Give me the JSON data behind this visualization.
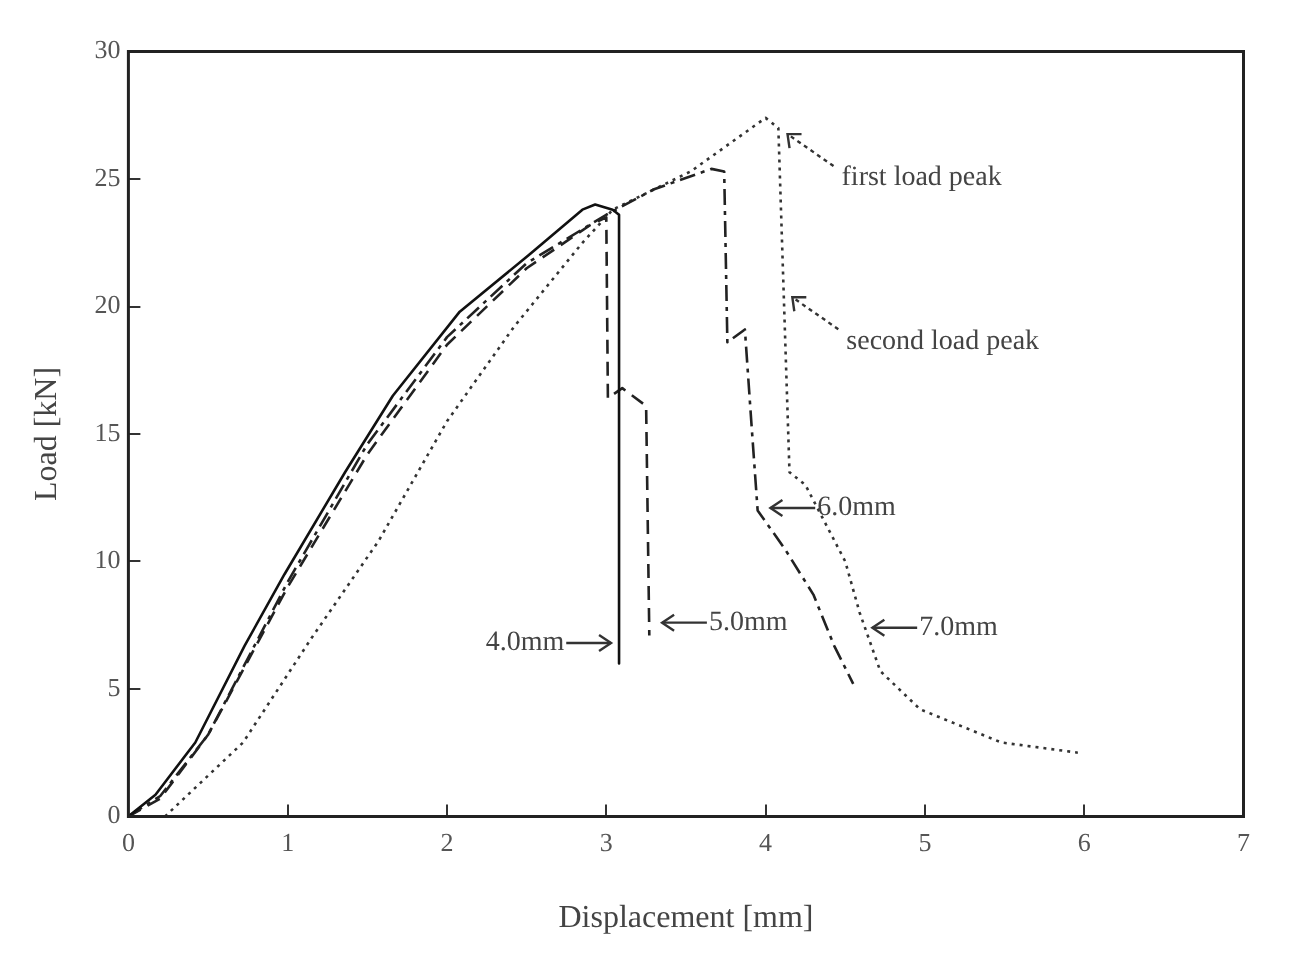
{
  "chart_data": {
    "type": "line",
    "xlabel": "Displacement [mm]",
    "ylabel": "Load [kN]",
    "xlim": [
      0,
      7
    ],
    "xticks": [
      0,
      1,
      2,
      3,
      4,
      5,
      6,
      7
    ],
    "ylim": [
      0,
      30
    ],
    "yticks": [
      0,
      5,
      10,
      15,
      20,
      25,
      30
    ],
    "grid": false,
    "legend": false,
    "marker": "none",
    "series": [
      {
        "color": "#111111",
        "line_style": "solid",
        "x": [
          0,
          0.17,
          0.42,
          0.73,
          0.98,
          1.36,
          1.66,
          2.08,
          2.51,
          2.85,
          2.93,
          3.04,
          3.08,
          3.08
        ],
        "values": [
          0,
          0.85,
          2.9,
          6.7,
          9.5,
          13.5,
          16.5,
          19.8,
          22,
          23.8,
          24,
          23.8,
          23.6,
          6
        ]
      },
      {
        "color": "#222222",
        "line_style": "dashed",
        "x": [
          0,
          0.2,
          0.5,
          1,
          1.5,
          2,
          2.5,
          2.9,
          3,
          3.01,
          3.1,
          3.25,
          3.27
        ],
        "values": [
          0,
          0.7,
          3.2,
          9,
          14.2,
          18.5,
          21.5,
          23.2,
          23.5,
          16.4,
          16.8,
          16.1,
          7.1
        ]
      },
      {
        "color": "#222222",
        "line_style": "dashdot",
        "x": [
          0,
          0.2,
          0.5,
          1,
          1.5,
          2,
          2.5,
          3,
          3.3,
          3.66,
          3.74,
          3.76,
          3.87,
          3.91,
          3.95,
          4.12,
          4.3,
          4.43,
          4.55
        ],
        "values": [
          0,
          0.8,
          3.2,
          9.2,
          14.6,
          18.8,
          21.7,
          23.6,
          24.6,
          25.4,
          25.3,
          18.6,
          19.1,
          15.5,
          12,
          10.5,
          8.7,
          6.7,
          5.2
        ]
      },
      {
        "color": "#333333",
        "line_style": "dotted",
        "x": [
          0.23,
          0.72,
          1.15,
          1.57,
          2,
          2.42,
          2.85,
          3.04,
          3.53,
          4,
          4.08,
          4.15,
          4.25,
          4.5,
          4.59,
          4.72,
          4.97,
          5.48,
          5.96
        ],
        "values": [
          0,
          2.9,
          7,
          10.8,
          15.5,
          19.2,
          22.5,
          23.8,
          25.3,
          27.4,
          27,
          13.5,
          13,
          10,
          8,
          5.7,
          4.2,
          2.9,
          2.5
        ]
      }
    ],
    "annotations": [
      {
        "text": "4.0mm",
        "x": 3.08,
        "y": 6.8
      },
      {
        "text": "5.0mm",
        "x": 3.3,
        "y": 7.6
      },
      {
        "text": "6.0mm",
        "x": 3.98,
        "y": 12.1
      },
      {
        "text": "7.0mm",
        "x": 4.62,
        "y": 7.4
      },
      {
        "text": "first load peak",
        "x": 4.1,
        "y": 27
      },
      {
        "text": "second load peak",
        "x": 4.13,
        "y": 20.6
      }
    ]
  }
}
